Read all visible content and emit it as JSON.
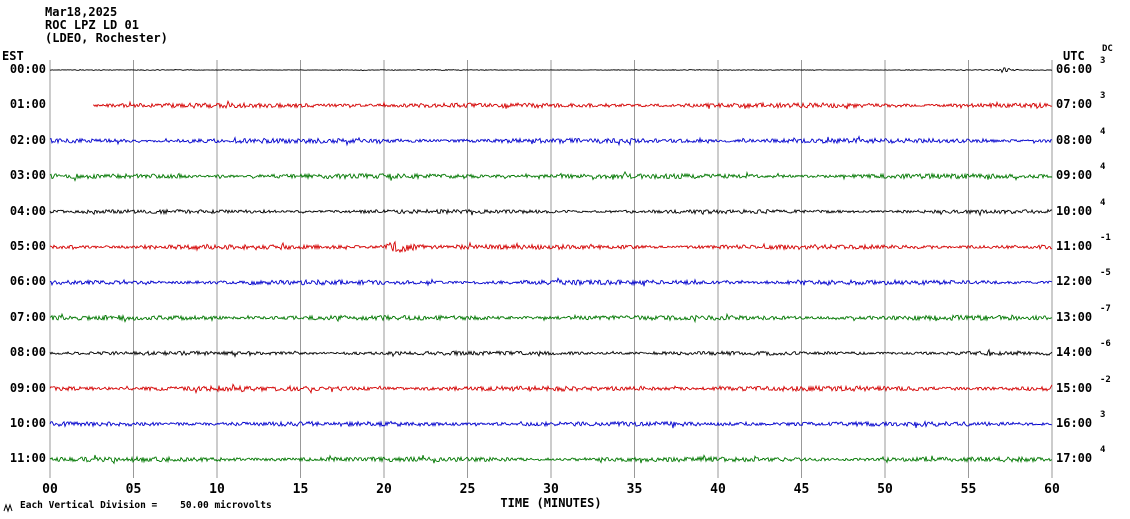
{
  "header": {
    "date": "Mar18,2025",
    "station": "ROC LPZ LD 01",
    "location": "(LDEO, Rochester)"
  },
  "axis": {
    "left_label": "EST",
    "right_label": "UTC",
    "dc_label": "DC",
    "x_label": "TIME (MINUTES)",
    "x_ticks": [
      "00",
      "05",
      "10",
      "15",
      "20",
      "25",
      "30",
      "35",
      "40",
      "45",
      "50",
      "55",
      "60"
    ]
  },
  "footer": {
    "scale_note": "Each Vertical Division =    50.00 microvolts",
    "scale_icon": "waveform-scale-icon"
  },
  "chart_data": {
    "type": "line",
    "title": "Mar18,2025 ROC LPZ LD 01 (LDEO, Rochester)",
    "xlabel": "TIME (MINUTES)",
    "ylabel": "",
    "x_range_minutes": [
      0,
      60
    ],
    "minutes_per_row": 60,
    "vertical_division_microvolts": 50.0,
    "grid": true,
    "gridline_color": "#999999",
    "colors": {
      "black": "#000000",
      "red": "#d40000",
      "blue": "#0000cc",
      "green": "#007700"
    },
    "rows": [
      {
        "est": "00:00",
        "utc": "06:00",
        "dc": "3",
        "color": "black",
        "start_min": 0,
        "noise_amp": 0.3,
        "events": [
          {
            "start": 56.6,
            "end": 58.2,
            "amp": 2.5
          }
        ]
      },
      {
        "est": "01:00",
        "utc": "07:00",
        "dc": "3",
        "color": "red",
        "start_min": 2.6,
        "noise_amp": 1.8,
        "events": []
      },
      {
        "est": "02:00",
        "utc": "08:00",
        "dc": "4",
        "color": "blue",
        "start_min": 0,
        "noise_amp": 1.8,
        "events": []
      },
      {
        "est": "03:00",
        "utc": "09:00",
        "dc": "4",
        "color": "green",
        "start_min": 0,
        "noise_amp": 1.8,
        "events": []
      },
      {
        "est": "04:00",
        "utc": "10:00",
        "dc": "4",
        "color": "black",
        "start_min": 0,
        "noise_amp": 1.5,
        "events": []
      },
      {
        "est": "05:00",
        "utc": "11:00",
        "dc": "-1",
        "color": "red",
        "start_min": 0,
        "noise_amp": 1.8,
        "events": [
          {
            "start": 19.8,
            "end": 23.2,
            "amp": 6.5
          }
        ]
      },
      {
        "est": "06:00",
        "utc": "12:00",
        "dc": "-5",
        "color": "blue",
        "start_min": 0,
        "noise_amp": 1.8,
        "events": []
      },
      {
        "est": "07:00",
        "utc": "13:00",
        "dc": "-7",
        "color": "green",
        "start_min": 0,
        "noise_amp": 1.8,
        "events": []
      },
      {
        "est": "08:00",
        "utc": "14:00",
        "dc": "-6",
        "color": "black",
        "start_min": 0,
        "noise_amp": 1.5,
        "events": []
      },
      {
        "est": "09:00",
        "utc": "15:00",
        "dc": "-2",
        "color": "red",
        "start_min": 0,
        "noise_amp": 1.9,
        "events": [
          {
            "start": 9.6,
            "end": 11.3,
            "amp": 3.2
          }
        ]
      },
      {
        "est": "10:00",
        "utc": "16:00",
        "dc": "3",
        "color": "blue",
        "start_min": 0,
        "noise_amp": 1.8,
        "events": []
      },
      {
        "est": "11:00",
        "utc": "17:00",
        "dc": "4",
        "color": "green",
        "start_min": 0,
        "noise_amp": 1.8,
        "events": []
      }
    ]
  }
}
